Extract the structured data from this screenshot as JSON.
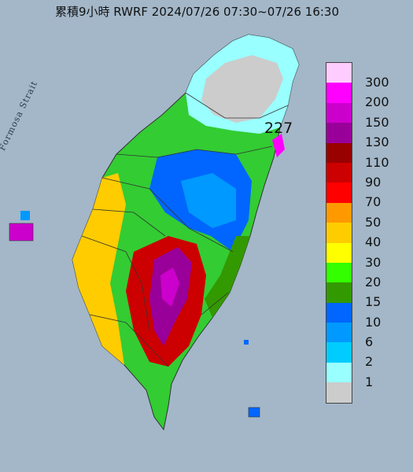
{
  "title": "累積9小時 RWRF 2024/07/26 07:30~07/26 16:30",
  "strait_label": "Formosa Strait",
  "max_label": "227",
  "legend": {
    "levels": [
      {
        "label": "300",
        "color": "#ffccff"
      },
      {
        "label": "200",
        "color": "#ff00ff"
      },
      {
        "label": "150",
        "color": "#cc00cc"
      },
      {
        "label": "130",
        "color": "#990099"
      },
      {
        "label": "110",
        "color": "#990000"
      },
      {
        "label": "90",
        "color": "#cc0000"
      },
      {
        "label": "70",
        "color": "#ff0000"
      },
      {
        "label": "50",
        "color": "#ff9900"
      },
      {
        "label": "40",
        "color": "#ffcc00"
      },
      {
        "label": "30",
        "color": "#ffff00"
      },
      {
        "label": "20",
        "color": "#33ff00"
      },
      {
        "label": "15",
        "color": "#339900"
      },
      {
        "label": "10",
        "color": "#0066ff"
      },
      {
        "label": "6",
        "color": "#0099ff"
      },
      {
        "label": "2",
        "color": "#00ccff"
      },
      {
        "label": "1",
        "color": "#99ffff"
      },
      {
        "label": "",
        "color": "#cccccc"
      }
    ]
  }
}
